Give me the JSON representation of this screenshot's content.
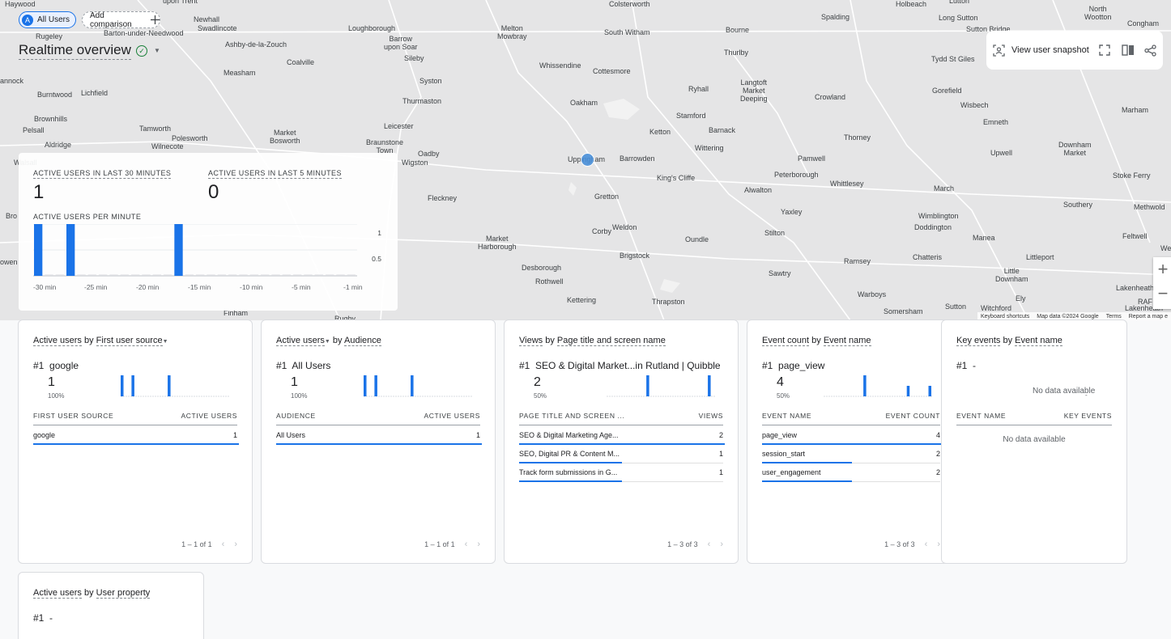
{
  "segments": {
    "all_users_avatar": "A",
    "all_users": "All Users",
    "add_comparison": "Add comparison"
  },
  "page_title": "Realtime overview",
  "snapshot": {
    "label": "View user snapshot"
  },
  "map": {
    "towns": [
      "Haywood",
      "upon Trent",
      "Colsterworth",
      "Holbeach",
      "Lutton",
      "North\nWootton",
      "Congham",
      "Newhall",
      "Swadlincote",
      "Loughborough",
      "Melton\nMowbray",
      "South Witham",
      "Bourne",
      "Spalding",
      "Long Sutton",
      "Sutton Bridge",
      "Rugeley",
      "Barton-under-Needwood",
      "Barrow\nupon Soar",
      "Ashby-de-la-Zouch",
      "Thurlby",
      "Tydd St Giles",
      "Coalville",
      "Sileby",
      "Whissendine",
      "Cottesmore",
      "Measham",
      "annock",
      "Syston",
      "Langtoft\nMarket\nDeeping",
      "Ryhall",
      "Gorefield",
      "Burntwood",
      "Lichfield",
      "Thurmaston",
      "Oakham",
      "Wisbech",
      "Crowland",
      "Marham",
      "Brownhills",
      "Stamford",
      "Emneth",
      "Leicester",
      "Pelsall",
      "Tamworth",
      "Market\nBosworth",
      "Barnack",
      "Ketton",
      "Thorney",
      "Aldridge",
      "Polesworth",
      "Wilnecote",
      "Braunstone\nTown",
      "Wittering",
      "Downham\nMarket",
      "Upwell",
      "Oadby",
      "Wigston",
      "Uppingham",
      "Barrowden",
      "Pamwell",
      "Peterborough",
      "King's Cliffe",
      "Whittlesey",
      "Stoke Ferry",
      "Fleckney",
      "Gretton",
      "Alwalton",
      "March",
      "Southery",
      "Methwold",
      "Yaxley",
      "Wimblington",
      "Doddington",
      "Corby",
      "Weldon",
      "Stilton",
      "Manea",
      "Feltwell",
      "Market\nHarborough",
      "Oundle",
      "Littleport",
      "Brigstock",
      "Ramsey",
      "Chatteris",
      "Desborough",
      "Sawtry",
      "Little\nDownham",
      "Lakenheath",
      "Rothwell",
      "Warboys",
      "Ely",
      "Kettering",
      "Thrapston",
      "Somersham",
      "Sutton",
      "Witchford",
      "Lakenheath",
      "Finham",
      "Rugby",
      "We",
      "owen",
      "Bro",
      "Walsall",
      "RAF"
    ],
    "footer": [
      "Keyboard shortcuts",
      "Map data ©2024 Google",
      "Terms",
      "Report a map e"
    ],
    "zoom_in": "+",
    "zoom_out": "−"
  },
  "overview": {
    "label_30": "ACTIVE USERS IN LAST 30 MINUTES",
    "value_30": "1",
    "label_5": "ACTIVE USERS IN LAST 5 MINUTES",
    "value_5": "0",
    "label_pm": "ACTIVE USERS PER MINUTE"
  },
  "chart_data": {
    "type": "bar",
    "title": "ACTIVE USERS PER MINUTE",
    "x": [
      -30,
      -29,
      -28,
      -27,
      -26,
      -25,
      -24,
      -23,
      -22,
      -21,
      -20,
      -19,
      -18,
      -17,
      -16,
      -15,
      -14,
      -13,
      -12,
      -11,
      -10,
      -9,
      -8,
      -7,
      -6,
      -5,
      -4,
      -3,
      -2,
      -1
    ],
    "values": [
      1,
      0,
      0,
      1,
      0,
      0,
      0,
      0,
      0,
      0,
      0,
      0,
      0,
      1,
      0,
      0,
      0,
      0,
      0,
      0,
      0,
      0,
      0,
      0,
      0,
      0,
      0,
      0,
      0,
      0
    ],
    "xticks": [
      "-30 min",
      "-25 min",
      "-20 min",
      "-15 min",
      "-10 min",
      "-5 min",
      "-1 min"
    ],
    "yticks": [
      "1",
      "0.5"
    ],
    "ylim": [
      0,
      1
    ],
    "color": "#1a73e8"
  },
  "cards": [
    {
      "metric": "Active users",
      "by": "by",
      "dim": "First user source",
      "metric_dropdown": false,
      "dim_dropdown": true,
      "rank": "#1",
      "top_name": "google",
      "top_value": "1",
      "top_pct": "100%",
      "spark": [
        1,
        0,
        0,
        1,
        0,
        0,
        0,
        0,
        0,
        0,
        0,
        0,
        0,
        1,
        0,
        0,
        0,
        0,
        0,
        0,
        0,
        0,
        0,
        0,
        0,
        0,
        0,
        0,
        0,
        0
      ],
      "col1": "FIRST USER SOURCE",
      "col2": "ACTIVE USERS",
      "rows": [
        {
          "name": "google",
          "value": "1",
          "share": 1.0
        }
      ],
      "pager": "1 – 1 of 1"
    },
    {
      "metric": "Active users",
      "by": "by",
      "dim": "Audience",
      "metric_dropdown": true,
      "dim_dropdown": false,
      "rank": "#1",
      "top_name": "All Users",
      "top_value": "1",
      "top_pct": "100%",
      "spark": [
        1,
        0,
        0,
        1,
        0,
        0,
        0,
        0,
        0,
        0,
        0,
        0,
        0,
        1,
        0,
        0,
        0,
        0,
        0,
        0,
        0,
        0,
        0,
        0,
        0,
        0,
        0,
        0,
        0,
        0
      ],
      "col1": "AUDIENCE",
      "col2": "ACTIVE USERS",
      "rows": [
        {
          "name": "All Users",
          "value": "1",
          "share": 1.0
        }
      ],
      "pager": "1 – 1 of 1"
    },
    {
      "metric": "Views",
      "by": "by",
      "dim": "Page title and screen name",
      "metric_dropdown": false,
      "dim_dropdown": false,
      "rank": "#1",
      "top_name": "SEO & Digital Market...in Rutland | Quibble",
      "top_value": "2",
      "top_pct": "50%",
      "spark": [
        0,
        0,
        0,
        0,
        0,
        0,
        0,
        0,
        0,
        0,
        0,
        1,
        0,
        0,
        0,
        0,
        0,
        0,
        0,
        0,
        0,
        0,
        0,
        0,
        0,
        0,
        0,
        0,
        1,
        0
      ],
      "col1": "PAGE TITLE AND SCREEN ...",
      "col2": "VIEWS",
      "rows": [
        {
          "name": "SEO & Digital Marketing Age...",
          "value": "2",
          "share": 1.0
        },
        {
          "name": "SEO, Digital PR & Content M...",
          "value": "1",
          "share": 0.5
        },
        {
          "name": "Track form submissions in G...",
          "value": "1",
          "share": 0.5
        }
      ],
      "pager": "1 – 3 of 3"
    },
    {
      "metric": "Event count",
      "by": "by",
      "dim": "Event name",
      "metric_dropdown": false,
      "dim_dropdown": false,
      "rank": "#1",
      "top_name": "page_view",
      "top_value": "4",
      "top_pct": "50%",
      "spark": [
        0,
        0,
        0,
        0,
        0,
        0,
        0,
        0,
        0,
        0,
        0,
        1,
        0,
        0,
        0,
        0,
        0,
        0,
        0,
        0,
        0,
        0,
        0,
        0.5,
        0,
        0,
        0,
        0,
        0,
        0.5
      ],
      "col1": "EVENT NAME",
      "col2": "EVENT COUNT",
      "rows": [
        {
          "name": "page_view",
          "value": "4",
          "share": 1.0
        },
        {
          "name": "session_start",
          "value": "2",
          "share": 0.5
        },
        {
          "name": "user_engagement",
          "value": "2",
          "share": 0.5
        }
      ],
      "pager": "1 – 3 of 3"
    },
    {
      "metric": "Key events",
      "by": "by",
      "dim": "Event name",
      "metric_dropdown": false,
      "dim_dropdown": false,
      "rank": "#1",
      "top_name": "-",
      "top_value": "",
      "top_pct": "-",
      "nodata_top": "No data available",
      "col1": "EVENT NAME",
      "col2": "KEY EVENTS",
      "rows": [],
      "nodata_table": "No data available",
      "pager": ""
    }
  ],
  "card6": {
    "metric": "Active users",
    "by": "by",
    "dim": "User property",
    "rank": "#1",
    "top_name": "-"
  }
}
